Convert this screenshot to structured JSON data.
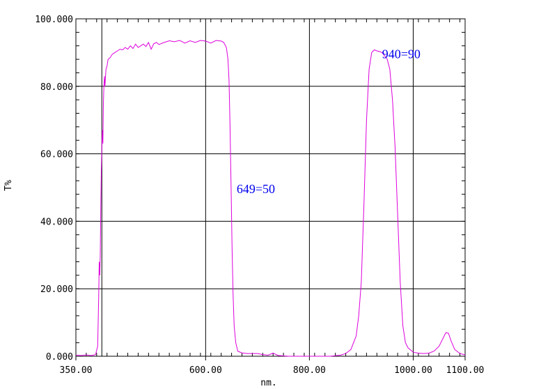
{
  "chart_data": {
    "type": "line",
    "title": "",
    "xlabel": "nm.",
    "ylabel": "T%",
    "xlim": [
      350,
      1100
    ],
    "ylim": [
      0,
      100
    ],
    "grid": true,
    "x_gridlines": [
      400,
      600,
      800,
      1000
    ],
    "y_gridlines": [
      20,
      40,
      60,
      80
    ],
    "x_ticks": [
      350,
      600,
      800,
      1000,
      1100
    ],
    "x_tick_labels": [
      "350.00",
      "600.00",
      "800.00",
      "1000.00",
      "1100.00"
    ],
    "y_ticks": [
      0,
      20,
      40,
      60,
      80,
      100
    ],
    "y_tick_labels": [
      "0.000",
      "20.000",
      "40.000",
      "60.000",
      "80.000",
      "100.000"
    ],
    "line_color": "#dd00dd",
    "annotation_color": "#0000ee",
    "annotations": [
      {
        "text": "649=50",
        "x": 649,
        "y": 50
      },
      {
        "text": "940=90",
        "x": 940,
        "y": 90
      }
    ],
    "series": [
      {
        "x": [
          350,
          360,
          370,
          380,
          388,
          392,
          394,
          395,
          396,
          397,
          398,
          399,
          400,
          401,
          402,
          403,
          404,
          405,
          406,
          408,
          410,
          412,
          416,
          420,
          425,
          430,
          435,
          440,
          445,
          450,
          455,
          460,
          465,
          470,
          475,
          480,
          485,
          490,
          495,
          500,
          505,
          510,
          520,
          530,
          540,
          550,
          560,
          570,
          580,
          590,
          600,
          610,
          620,
          630,
          635,
          640,
          643,
          645,
          647,
          649,
          651,
          653,
          655,
          658,
          662,
          670,
          680,
          700,
          710,
          720,
          730,
          740,
          760,
          800,
          840,
          860,
          870,
          880,
          890,
          895,
          900,
          905,
          910,
          915,
          920,
          925,
          930,
          935,
          940,
          945,
          950,
          955,
          960,
          965,
          970,
          975,
          980,
          985,
          990,
          1000,
          1010,
          1020,
          1030,
          1040,
          1050,
          1058,
          1063,
          1068,
          1073,
          1080,
          1090,
          1100
        ],
        "y": [
          0.3,
          0.2,
          0.4,
          0.2,
          0.5,
          3,
          18,
          28,
          24,
          30,
          45,
          55,
          62,
          67,
          63,
          75,
          80,
          83,
          80,
          85,
          86,
          88,
          88.5,
          89.5,
          90,
          90.5,
          91,
          90.8,
          91.5,
          91,
          92,
          91.2,
          92.5,
          91.5,
          92,
          92.5,
          91.8,
          93,
          91,
          92.6,
          93,
          92.4,
          93,
          93.5,
          93.2,
          93.6,
          92.8,
          93.5,
          93,
          93.6,
          93.4,
          92.8,
          93.6,
          93.4,
          93,
          91.5,
          88,
          82,
          68,
          50,
          32,
          18,
          9,
          4,
          1.5,
          1,
          0.8,
          0.8,
          0.5,
          0.3,
          0.9,
          0.2,
          0,
          0,
          0,
          0.3,
          0.8,
          2,
          6,
          12,
          22,
          45,
          70,
          85,
          90,
          90.8,
          90.5,
          90.3,
          90,
          89,
          88,
          85,
          76,
          62,
          42,
          22,
          9,
          4,
          2.5,
          1.2,
          0.9,
          0.8,
          0.9,
          1.5,
          3,
          5.5,
          7,
          6.8,
          4.5,
          2,
          0.8,
          0.4
        ]
      }
    ]
  }
}
